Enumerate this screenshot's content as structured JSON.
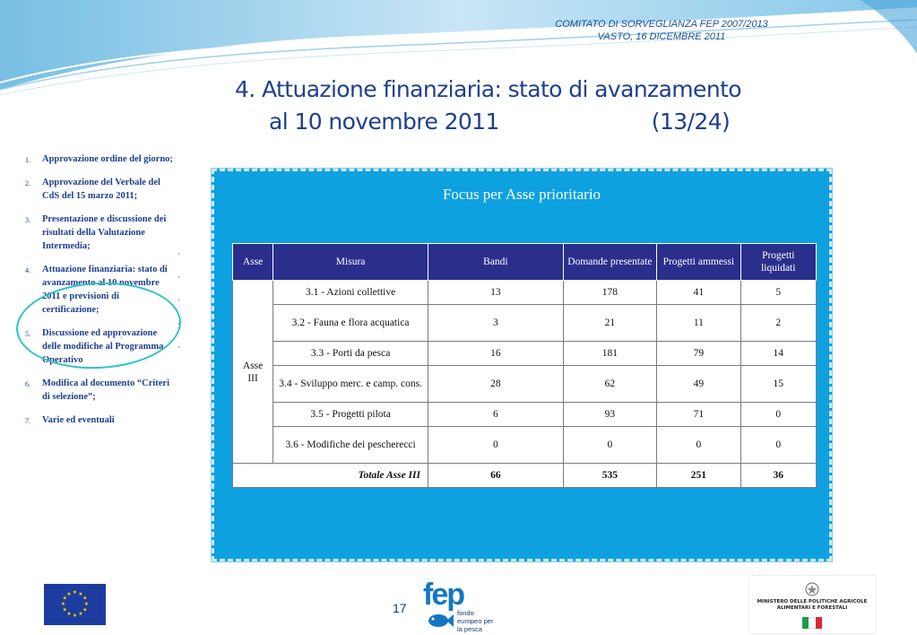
{
  "header": {
    "line1": "COMITATO DI SORVEGLIANZA FEP 2007/2013",
    "line2": "VASTO, 16 DICEMBRE 2011"
  },
  "title": {
    "line1": "4. Attuazione finanziaria: stato di avanzamento",
    "line2": "al 10 novembre 2011",
    "page_ref": "(13/24)"
  },
  "agenda": [
    {
      "num": "1.",
      "text": "Approvazione ordine del giorno;"
    },
    {
      "num": "2.",
      "text": "Approvazione del Verbale del CdS del 15 marzo 2011;"
    },
    {
      "num": "3.",
      "text": "Presentazione e discussione dei risultati della Valutazione Intermedia;"
    },
    {
      "num": "4.",
      "text": "Attuazione finanziaria: stato di avanzamento al 10 novembre 2011 e previsioni di certificazione;"
    },
    {
      "num": "5.",
      "text": "Discussione ed approvazione delle modifiche al Programma Operativo"
    },
    {
      "num": "6.",
      "text": "Modifica al documento “Criteri di selezione”;"
    },
    {
      "num": "7.",
      "text": "Varie ed eventuali"
    }
  ],
  "panel": {
    "title": "Focus per Asse prioritario",
    "columns": [
      "Asse",
      "Misura",
      "Bandi",
      "Domande presentate",
      "Progetti ammessi",
      "Progetti liquidati"
    ],
    "asse_label": "Asse III",
    "rows": [
      {
        "misura": "3.1 - Azioni collettive",
        "bandi": "13",
        "domande": "178",
        "ammessi": "41",
        "liquidati": "5"
      },
      {
        "misura": "3.2 - Fauna e flora acquatica",
        "bandi": "3",
        "domande": "21",
        "ammessi": "11",
        "liquidati": "2"
      },
      {
        "misura": "3.3 - Porti da pesca",
        "bandi": "16",
        "domande": "181",
        "ammessi": "79",
        "liquidati": "14"
      },
      {
        "misura": "3.4 - Sviluppo merc. e camp. cons.",
        "bandi": "28",
        "domande": "62",
        "ammessi": "49",
        "liquidati": "15"
      },
      {
        "misura": "3.5 - Progetti pilota",
        "bandi": "6",
        "domande": "93",
        "ammessi": "71",
        "liquidati": "0"
      },
      {
        "misura": "3.6 - Modifiche dei pescherecci",
        "bandi": "0",
        "domande": "0",
        "ammessi": "0",
        "liquidati": "0"
      }
    ],
    "total": {
      "label": "Totale Asse III",
      "bandi": "66",
      "domande": "535",
      "ammessi": "251",
      "liquidati": "36"
    }
  },
  "footer": {
    "page_number": "17",
    "fep_word": "fep",
    "fep_sub": "fondo europeo per la pesca",
    "ministry": "MINISTERO DELLE POLITICHE AGRICOLE ALIMENTARI E FORESTALI"
  },
  "colors": {
    "title": "#1f3f8f",
    "panel_bg": "#0ea1e0",
    "table_header": "#2a2f8c",
    "ring": "#2fc2c6"
  }
}
